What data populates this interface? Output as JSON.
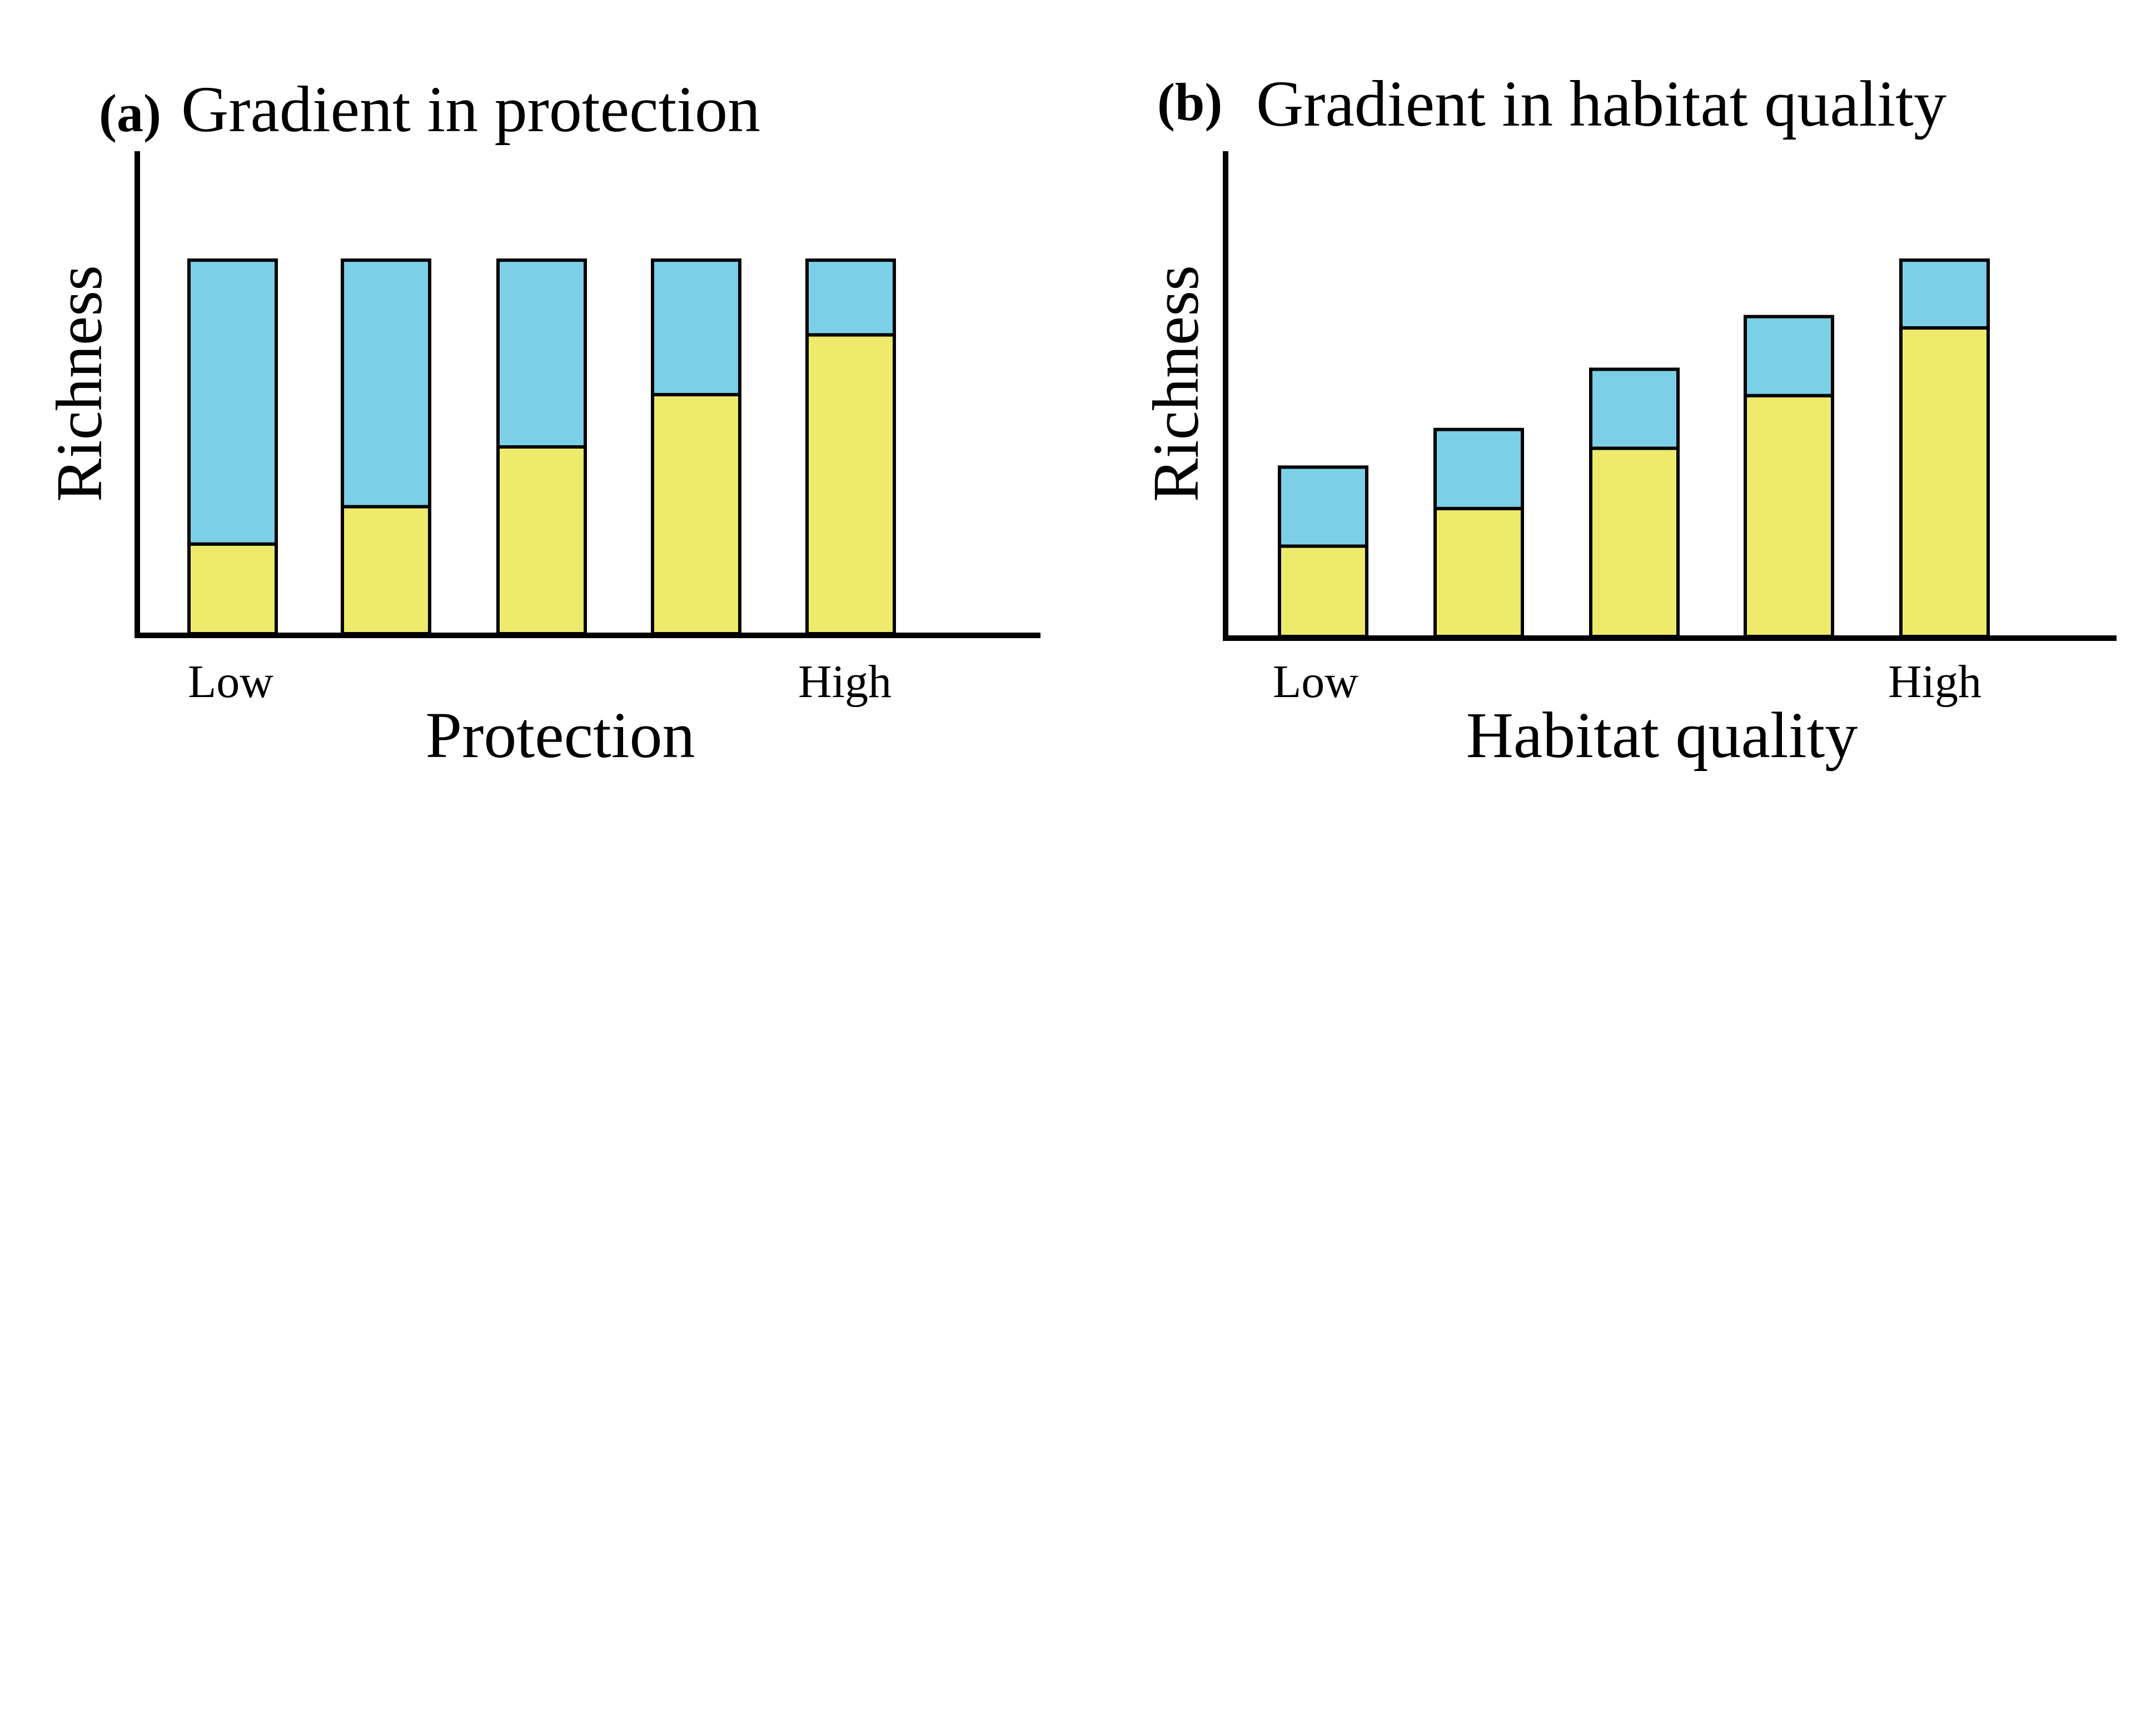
{
  "chart_data": [
    {
      "type": "bar",
      "stacked": true,
      "panel_label": "(a)",
      "title": "Gradient in protection",
      "xlabel": "Protection",
      "ylabel": "Richness",
      "x_tick_labels": [
        "Low",
        "High"
      ],
      "categories": [
        "1",
        "2",
        "3",
        "4",
        "5"
      ],
      "ylim": [
        0,
        100
      ],
      "series": [
        {
          "color": "#eeea6b",
          "values": [
            24,
            34,
            50,
            64,
            80
          ]
        },
        {
          "color": "#7bcfe6",
          "values": [
            76,
            66,
            50,
            36,
            20
          ]
        }
      ]
    },
    {
      "type": "bar",
      "stacked": true,
      "panel_label": "(b)",
      "title": "Gradient in habitat quality",
      "xlabel": "Habitat quality",
      "ylabel": "Richness",
      "x_tick_labels": [
        "Low",
        "High"
      ],
      "categories": [
        "1",
        "2",
        "3",
        "4",
        "5"
      ],
      "ylim": [
        0,
        100
      ],
      "series": [
        {
          "color": "#eeea6b",
          "values": [
            24,
            34,
            50,
            64,
            82
          ]
        },
        {
          "color": "#7bcfe6",
          "values": [
            21,
            21,
            21,
            21,
            18
          ]
        }
      ]
    }
  ]
}
